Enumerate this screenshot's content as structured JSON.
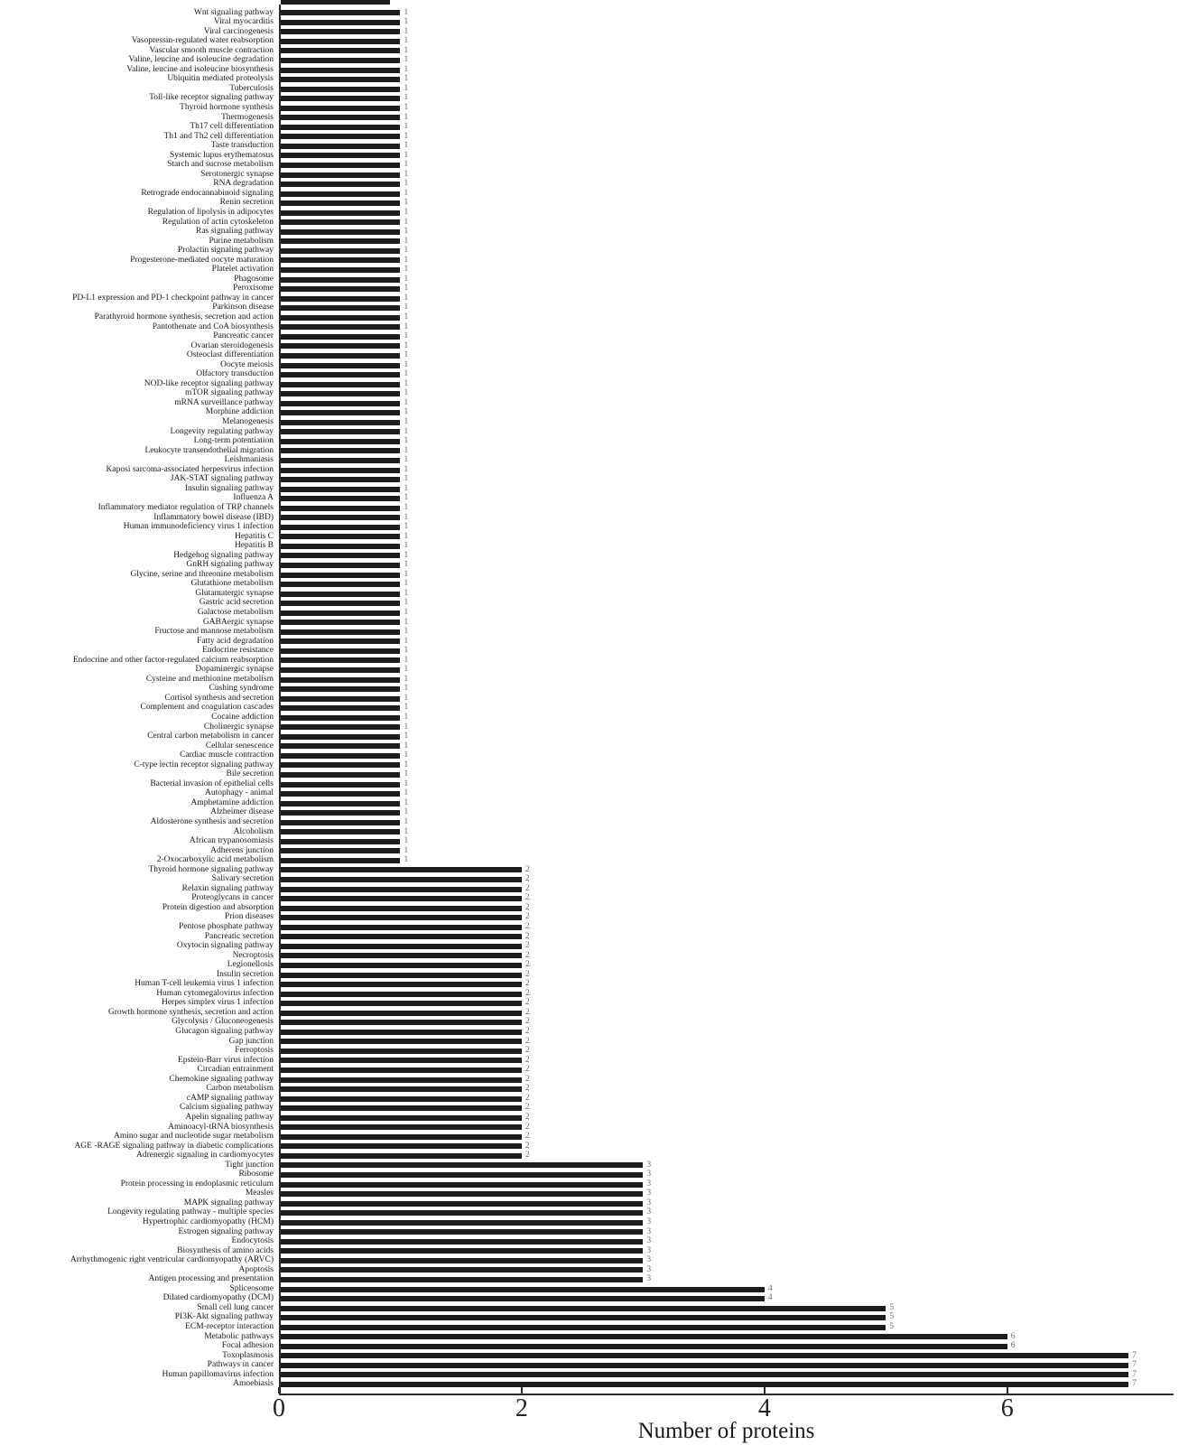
{
  "chart_data": {
    "type": "bar",
    "orientation": "horizontal",
    "title": "",
    "xlabel": "Number of proteins",
    "ylabel": "",
    "xlim": [
      0,
      7.37
    ],
    "x_ticks": [
      0,
      2,
      4,
      6
    ],
    "grid": false,
    "legend": "none",
    "bar_color": "#1c1c1c",
    "value_labels_shown": true,
    "categories": [
      "Wnt signaling pathway",
      "Viral myocarditis",
      "Viral carcinogenesis",
      "Vasopressin-regulated water reabsorption",
      "Vascular smooth muscle contraction",
      "Valine, leucine and isoleucine degradation",
      "Valine, leucine and isoleucine biosynthesis",
      "Ubiquitin mediated proteolysis",
      "Tuberculosis",
      "Toll-like receptor signaling pathway",
      "Thyroid hormone synthesis",
      "Thermogenesis",
      "Th17 cell differentiation",
      "Th1 and Th2 cell differentiation",
      "Taste transduction",
      "Systemic lupus erythematosus",
      "Starch and sucrose metabolism",
      "Serotonergic synapse",
      "RNA degradation",
      "Retrograde endocannabinoid signaling",
      "Renin secretion",
      "Regulation of lipolysis in adipocytes",
      "Regulation of actin cytoskeleton",
      "Ras signaling pathway",
      "Purine metabolism",
      "Prolactin signaling pathway",
      "Progesterone-mediated oocyte maturation",
      "Platelet activation",
      "Phagosome",
      "Peroxisome",
      "PD-L1 expression and PD-1 checkpoint pathway in cancer",
      "Parkinson disease",
      "Parathyroid hormone synthesis, secretion and action",
      "Pantothenate and CoA biosynthesis",
      "Pancreatic cancer",
      "Ovarian steroidogenesis",
      "Osteoclast differentiation",
      "Oocyte meiosis",
      "Olfactory transduction",
      "NOD-like receptor signaling pathway",
      "mTOR signaling pathway",
      "mRNA surveillance pathway",
      "Morphine addiction",
      "Melanogenesis",
      "Longevity regulating pathway",
      "Long-term potentiation",
      "Leukocyte transendothelial migration",
      "Leishmaniasis",
      "Kaposi sarcoma-associated herpesvirus infection",
      "JAK-STAT signaling pathway",
      "Insulin signaling pathway",
      "Influenza A",
      "Inflammatory mediator regulation of TRP channels",
      "Inflammatory bowel disease (IBD)",
      "Human immunodeficiency virus 1 infection",
      "Hepatitis C",
      "Hepatitis B",
      "Hedgehog signaling pathway",
      "GnRH signaling pathway",
      "Glycine, serine and threonine metabolism",
      "Glutathione metabolism",
      "Glutamatergic synapse",
      "Gastric acid secretion",
      "Galactose metabolism",
      "GABAergic synapse",
      "Fructose and mannose metabolism",
      "Fatty acid degradation",
      "Endocrine resistance",
      "Endocrine and other factor-regulated calcium reabsorption",
      "Dopaminergic synapse",
      "Cysteine and methionine metabolism",
      "Cushing syndrome",
      "Cortisol synthesis and secretion",
      "Complement and coagulation cascades",
      "Cocaine addiction",
      "Cholinergic synapse",
      "Central carbon metabolism in cancer",
      "Cellular senescence",
      "Cardiac muscle contraction",
      "C-type lectin receptor signaling pathway",
      "Bile secretion",
      "Bacterial invasion of epithelial cells",
      "Autophagy - animal",
      "Amphetamine addiction",
      "Alzheimer disease",
      "Aldosterone synthesis and secretion",
      "Alcoholism",
      "African trypanosomiasis",
      "Adherens junction",
      "2-Oxocarboxylic acid metabolism",
      "Thyroid hormone signaling pathway",
      "Salivary secretion",
      "Relaxin signaling pathway",
      "Proteoglycans in cancer",
      "Protein digestion and absorption",
      "Prion diseases",
      "Pentose phosphate pathway",
      "Pancreatic secretion",
      "Oxytocin signaling pathway",
      "Necroptosis",
      "Legionellosis",
      "Insulin secretion",
      "Human T-cell leukemia virus 1 infection",
      "Human cytomegalovirus infection",
      "Herpes simplex virus 1 infection",
      "Growth hormone synthesis, secretion and action",
      "Glycolysis / Gluconeogenesis",
      "Glucagon signaling pathway",
      "Gap junction",
      "Ferroptosis",
      "Epstein-Barr virus infection",
      "Circadian entrainment",
      "Chemokine signaling pathway",
      "Carbon metabolism",
      "cAMP signaling pathway",
      "Calcium signaling pathway",
      "Apelin signaling pathway",
      "Aminoacyl-tRNA biosynthesis",
      "Amino sugar and nucleotide sugar metabolism",
      "AGE -RAGE signaling pathway in diabetic complications",
      "Adrenergic signaling in cardiomyocytes",
      "Tight junction",
      "Ribosome",
      "Protein processing in endoplasmic reticulum",
      "Measles",
      "MAPK signaling pathway",
      "Longevity regulating pathway - multiple species",
      "Hypertrophic cardiomyopathy (HCM)",
      "Estrogen signaling pathway",
      "Endocytosis",
      "Biosynthesis of amino acids",
      "Arrhythmogenic right ventricular cardiomyopathy (ARVC)",
      "Apoptosis",
      "Antigen processing and presentation",
      "Spliceosome",
      "Dilated cardiomyopathy (DCM)",
      "Small cell lung cancer",
      "PI3K-Akt signaling pathway",
      "ECM-receptor interaction",
      "Metabolic pathways",
      "Focal adhesion",
      "Toxoplasmosis",
      "Pathways in cancer",
      "Human papillomavirus infection",
      "Amoebiasis"
    ],
    "values": [
      1,
      1,
      1,
      1,
      1,
      1,
      1,
      1,
      1,
      1,
      1,
      1,
      1,
      1,
      1,
      1,
      1,
      1,
      1,
      1,
      1,
      1,
      1,
      1,
      1,
      1,
      1,
      1,
      1,
      1,
      1,
      1,
      1,
      1,
      1,
      1,
      1,
      1,
      1,
      1,
      1,
      1,
      1,
      1,
      1,
      1,
      1,
      1,
      1,
      1,
      1,
      1,
      1,
      1,
      1,
      1,
      1,
      1,
      1,
      1,
      1,
      1,
      1,
      1,
      1,
      1,
      1,
      1,
      1,
      1,
      1,
      1,
      1,
      1,
      1,
      1,
      1,
      1,
      1,
      1,
      1,
      1,
      1,
      1,
      1,
      1,
      1,
      1,
      1,
      1,
      2,
      2,
      2,
      2,
      2,
      2,
      2,
      2,
      2,
      2,
      2,
      2,
      2,
      2,
      2,
      2,
      2,
      2,
      2,
      2,
      2,
      2,
      2,
      2,
      2,
      2,
      2,
      2,
      2,
      2,
      2,
      3,
      3,
      3,
      3,
      3,
      3,
      3,
      3,
      3,
      3,
      3,
      3,
      3,
      4,
      4,
      5,
      5,
      5,
      6,
      6,
      7,
      7,
      7,
      7
    ]
  }
}
